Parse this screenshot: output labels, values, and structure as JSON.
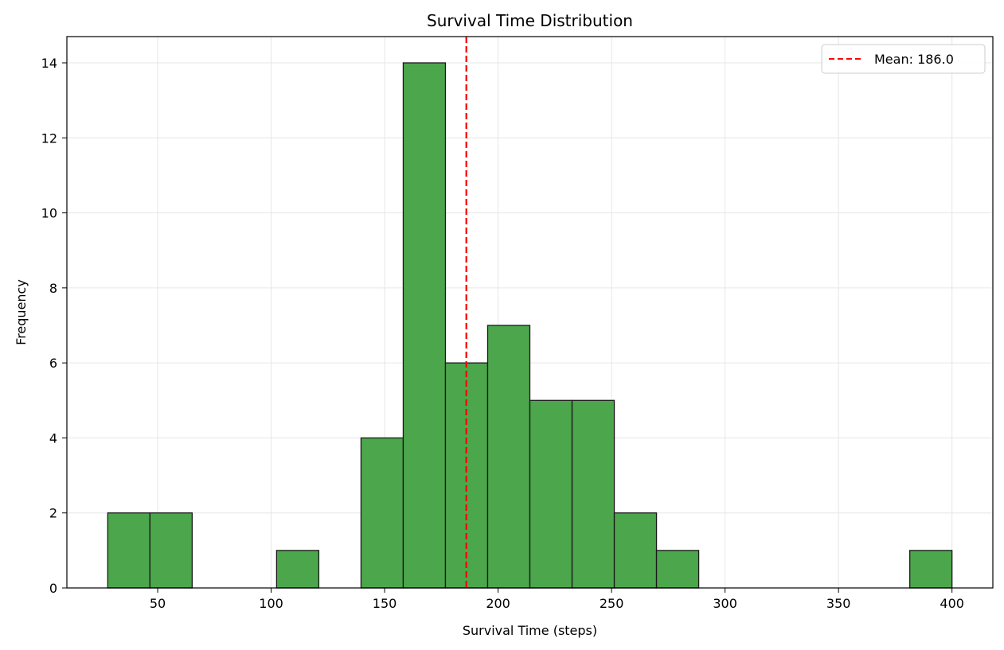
{
  "chart_data": {
    "type": "bar",
    "title": "Survival Time Distribution",
    "xlabel": "Survival Time (steps)",
    "ylabel": "Frequency",
    "xlim": [
      10,
      418
    ],
    "ylim": [
      0,
      14.7
    ],
    "xticks": [
      50,
      100,
      150,
      200,
      250,
      300,
      350,
      400
    ],
    "yticks": [
      0,
      2,
      4,
      6,
      8,
      10,
      12,
      14
    ],
    "grid": true,
    "bar_color": "#4ca64c",
    "bar_edge_color": "#1a1a1a",
    "bins": [
      {
        "x0": 28.0,
        "x1": 46.6,
        "value": 2
      },
      {
        "x0": 46.6,
        "x1": 65.2,
        "value": 2
      },
      {
        "x0": 65.2,
        "x1": 83.8,
        "value": 0
      },
      {
        "x0": 83.8,
        "x1": 102.4,
        "value": 0
      },
      {
        "x0": 102.4,
        "x1": 121.0,
        "value": 1
      },
      {
        "x0": 121.0,
        "x1": 139.6,
        "value": 0
      },
      {
        "x0": 139.6,
        "x1": 158.2,
        "value": 4
      },
      {
        "x0": 158.2,
        "x1": 176.8,
        "value": 14
      },
      {
        "x0": 176.8,
        "x1": 195.4,
        "value": 6
      },
      {
        "x0": 195.4,
        "x1": 214.0,
        "value": 7
      },
      {
        "x0": 214.0,
        "x1": 232.6,
        "value": 5
      },
      {
        "x0": 232.6,
        "x1": 251.2,
        "value": 5
      },
      {
        "x0": 251.2,
        "x1": 269.8,
        "value": 2
      },
      {
        "x0": 269.8,
        "x1": 288.4,
        "value": 1
      },
      {
        "x0": 288.4,
        "x1": 307.0,
        "value": 0
      },
      {
        "x0": 307.0,
        "x1": 325.6,
        "value": 0
      },
      {
        "x0": 325.6,
        "x1": 344.2,
        "value": 0
      },
      {
        "x0": 344.2,
        "x1": 362.8,
        "value": 0
      },
      {
        "x0": 362.8,
        "x1": 381.4,
        "value": 0
      },
      {
        "x0": 381.4,
        "x1": 400.0,
        "value": 1
      }
    ],
    "mean_line": {
      "value": 186.0,
      "label": "Mean: 186.0",
      "color": "#ff0000"
    },
    "legend_position": "top-right"
  }
}
